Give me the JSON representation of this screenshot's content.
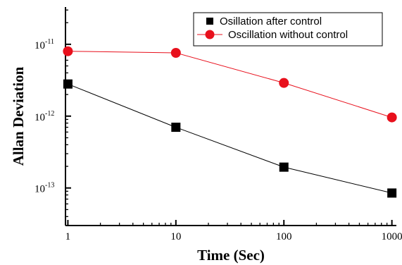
{
  "chart_data": {
    "type": "line",
    "xlabel": "Time (Sec)",
    "ylabel": "Allan Deviation",
    "x_scale": "log",
    "y_scale": "log",
    "xlim": [
      0.95,
      1100
    ],
    "ylim": [
      3e-14,
      3.3e-11
    ],
    "x_ticks": [
      {
        "value": 1,
        "label": "1"
      },
      {
        "value": 10,
        "label": "10"
      },
      {
        "value": 100,
        "label": "100"
      },
      {
        "value": 1000,
        "label": "1000"
      }
    ],
    "y_ticks": [
      {
        "value": 1e-13,
        "base": "10",
        "exp": "-13"
      },
      {
        "value": 1e-12,
        "base": "10",
        "exp": "-12"
      },
      {
        "value": 1e-11,
        "base": "10",
        "exp": "-11"
      }
    ],
    "grid": false,
    "legend_position": "top-right",
    "series": [
      {
        "name": "Osillation after control",
        "color": "#000000",
        "marker": "square",
        "x": [
          1,
          10,
          100,
          1000
        ],
        "y": [
          2.8e-12,
          7e-13,
          1.95e-13,
          8.5e-14
        ]
      },
      {
        "name": "Oscillation without control",
        "color": "#e8101c",
        "marker": "circle",
        "x": [
          1,
          10,
          100,
          1000
        ],
        "y": [
          8e-12,
          7.6e-12,
          2.9e-12,
          9.6e-13
        ]
      }
    ]
  }
}
